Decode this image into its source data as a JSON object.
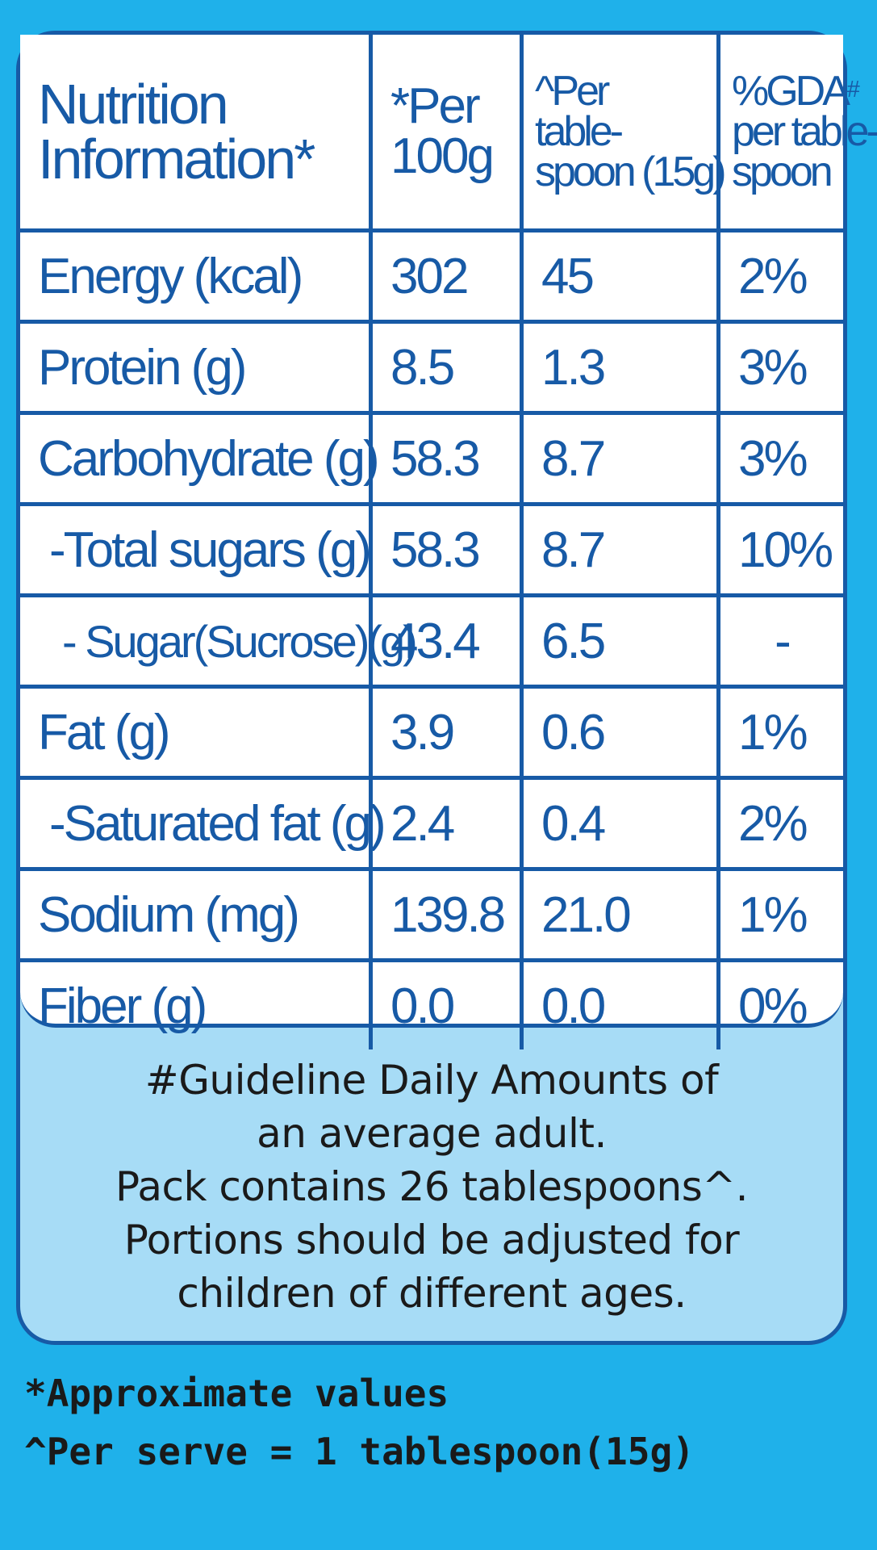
{
  "header": {
    "col1": [
      "Nutrition",
      "Information*"
    ],
    "col2": [
      "*Per",
      "100g"
    ],
    "col3": [
      "^Per",
      "table-",
      "spoon (15g)"
    ],
    "col4_main": "%GDA",
    "col4_sup": "#",
    "col4": [
      "per table-",
      "spoon"
    ]
  },
  "rows": [
    {
      "label": "Energy (kcal)",
      "per100": "302",
      "perTbsp": "45",
      "gda": "2%"
    },
    {
      "label": "Protein (g)",
      "per100": "8.5",
      "perTbsp": "1.3",
      "gda": "3%"
    },
    {
      "label": "Carbohydrate (g)",
      "per100": "58.3",
      "perTbsp": "8.7",
      "gda": "3%"
    },
    {
      "label": "-Total sugars (g)",
      "per100": "58.3",
      "perTbsp": "8.7",
      "gda": "10%"
    },
    {
      "label": "- Sugar(Sucrose)(g)",
      "per100": "43.4",
      "perTbsp": "6.5",
      "gda": "-"
    },
    {
      "label": "Fat (g)",
      "per100": "3.9",
      "perTbsp": "0.6",
      "gda": "1%"
    },
    {
      "label": "-Saturated fat (g)",
      "per100": "2.4",
      "perTbsp": "0.4",
      "gda": "2%"
    },
    {
      "label": "Sodium (mg)",
      "per100": "139.8",
      "perTbsp": "21.0",
      "gda": "1%"
    },
    {
      "label": "Fiber (g)",
      "per100": "0.0",
      "perTbsp": "0.0",
      "gda": "0%"
    }
  ],
  "note": {
    "lines": [
      "#Guideline Daily Amounts of",
      "an average adult.",
      "Pack contains 26 tablespoons^.",
      "Portions should be adjusted for",
      "children of different ages."
    ]
  },
  "footer": {
    "approx": "*Approximate values",
    "serve": "^Per serve = 1 tablespoon(15g)"
  },
  "colors": {
    "background": "#1fb1ea",
    "panel": "#a7dcf6",
    "table_bg": "#ffffff",
    "ink_blue": "#175aa6",
    "text_dark": "#1a1a1a"
  }
}
